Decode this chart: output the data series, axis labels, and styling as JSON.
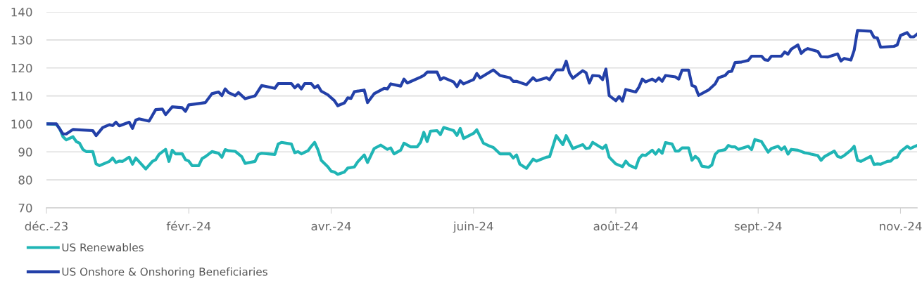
{
  "chart_data": {
    "type": "line",
    "ylim": [
      70,
      140
    ],
    "yticks": [
      70,
      80,
      90,
      100,
      110,
      120,
      130,
      140
    ],
    "categories": [
      "déc.-23",
      null,
      null,
      null,
      null,
      null,
      null,
      null,
      null,
      null,
      null,
      null,
      null,
      null,
      null,
      null,
      null,
      null,
      null,
      null,
      null,
      null,
      null,
      null,
      null,
      null,
      null,
      null,
      null,
      null,
      null,
      null,
      null,
      null,
      null,
      null,
      null,
      null,
      null,
      null,
      null,
      null,
      null,
      "févr.-24",
      null,
      null,
      null,
      null,
      null,
      null,
      null,
      null,
      null,
      null,
      null,
      null,
      null,
      null,
      null,
      null,
      null,
      null,
      null,
      null,
      null,
      null,
      null,
      null,
      null,
      null,
      null,
      null,
      null,
      null,
      null,
      null,
      null,
      null,
      null,
      null,
      null,
      null,
      null,
      null,
      null,
      null,
      "avr.-24",
      null,
      null,
      null,
      null,
      null,
      null,
      null,
      null,
      null,
      null,
      null,
      null,
      null,
      null,
      null,
      null,
      null,
      null,
      null,
      null,
      null,
      null,
      null,
      null,
      null,
      null,
      null,
      null,
      null,
      null,
      null,
      null,
      null,
      null,
      null,
      null,
      null,
      null,
      null,
      null,
      null,
      null,
      "juin-24",
      null,
      null,
      null,
      null,
      null,
      null,
      null,
      null,
      null,
      null,
      null,
      null,
      null,
      null,
      null,
      null,
      null,
      null,
      null,
      null,
      null,
      null,
      null,
      null,
      null,
      null,
      null,
      null,
      null,
      null,
      null,
      null,
      null,
      null,
      null,
      null,
      null,
      null,
      null,
      null,
      null,
      null,
      "août-24",
      null,
      null,
      null,
      null,
      null,
      null,
      null,
      null,
      null,
      null,
      null,
      null,
      null,
      null,
      null,
      null,
      null,
      null,
      null,
      null,
      null,
      null,
      null,
      null,
      null,
      null,
      null,
      null,
      null,
      null,
      null,
      null,
      null,
      null,
      null,
      null,
      null,
      null,
      null,
      null,
      null,
      null,
      "sept.-24",
      null,
      null,
      null,
      null,
      null,
      null,
      null,
      null,
      null,
      null,
      null,
      null,
      null,
      null,
      null,
      null,
      null,
      null,
      null,
      null,
      null,
      null,
      null,
      null,
      null,
      null,
      null,
      null,
      null,
      null,
      null,
      null,
      null,
      null,
      null,
      null,
      null,
      null,
      null,
      null,
      null,
      null,
      "nov.-24",
      null,
      null,
      null,
      null,
      null
    ],
    "grid": "y",
    "legend": "bottom",
    "marker": "none",
    "line_style": "solid",
    "series": [
      {
        "name": "US Renewables",
        "color": "#20b5b5",
        "values": [
          100.0,
          null,
          null,
          99.8,
          98.3,
          95.4,
          94.3,
          null,
          95.4,
          93.7,
          93.1,
          90.9,
          90.1,
          null,
          90.1,
          85.7,
          85.1,
          null,
          null,
          86.6,
          87.8,
          86.2,
          86.7,
          86.6,
          null,
          88.1,
          85.6,
          87.8,
          null,
          null,
          83.9,
          null,
          86.6,
          87.2,
          89.1,
          null,
          90.9,
          86.6,
          90.6,
          89.3,
          null,
          89.3,
          87.2,
          86.7,
          85.1,
          null,
          85.1,
          87.6,
          88.3,
          null,
          90.1,
          null,
          89.5,
          88.1,
          90.8,
          90.4,
          null,
          90.2,
          null,
          88.3,
          85.9,
          null,
          null,
          86.6,
          89.1,
          89.5,
          null,
          89.3,
          null,
          89.1,
          92.8,
          93.4,
          null,
          null,
          92.8,
          89.7,
          90.1,
          89.3,
          null,
          90.4,
          92.0,
          93.4,
          90.8,
          87.0,
          null,
          84.7,
          83.1,
          82.8,
          82.0,
          null,
          82.8,
          84.2,
          null,
          84.6,
          86.4,
          null,
          88.9,
          86.2,
          null,
          91.2,
          null,
          92.4,
          null,
          90.9,
          91.4,
          89.3,
          null,
          90.6,
          93.1,
          null,
          91.8,
          null,
          91.8,
          93.4,
          97.0,
          93.7,
          97.4,
          null,
          97.6,
          96.2,
          98.7,
          null,
          null,
          97.6,
          95.9,
          98.4,
          94.8,
          null,
          null,
          96.6,
          97.9,
          null,
          93.1,
          null,
          92.0,
          91.6,
          null,
          89.3,
          null,
          null,
          89.3,
          87.8,
          88.9,
          85.6,
          null,
          84.1,
          null,
          87.4,
          86.7,
          null,
          null,
          88.1,
          88.3,
          null,
          95.8,
          null,
          92.6,
          95.8,
          null,
          91.2,
          null,
          null,
          92.6,
          91.2,
          91.4,
          93.4,
          null,
          null,
          91.2,
          92.4,
          88.1,
          null,
          85.7,
          null,
          84.7,
          86.7,
          85.3,
          null,
          84.2,
          87.6,
          88.9,
          88.7,
          null,
          90.6,
          89.2,
          90.8,
          89.5,
          93.3,
          null,
          92.8,
          90.3,
          90.3,
          91.4,
          null,
          91.4,
          87.0,
          88.4,
          87.4,
          84.9,
          null,
          84.5,
          85.3,
          89.1,
          90.3,
          null,
          90.8,
          92.3,
          91.8,
          91.8,
          90.9,
          null,
          null,
          92.0,
          90.8,
          94.4,
          null,
          93.7,
          91.8,
          89.9,
          91.2,
          null,
          92.0,
          90.8,
          91.8,
          89.2,
          90.9,
          null,
          90.6,
          null,
          89.7,
          89.5,
          89.2,
          null,
          88.7,
          87.0,
          88.3,
          null,
          null,
          90.3,
          88.4,
          88.0,
          88.7,
          null,
          90.6,
          92.0,
          87.0,
          86.6,
          null,
          null,
          88.4,
          85.5,
          85.7,
          85.6,
          null,
          86.6,
          86.7,
          87.8,
          88.1,
          90.1,
          null,
          92.0,
          91.2,
          91.8,
          92.3
        ]
      },
      {
        "name": "US Onshore & Onshoring Beneficiaries",
        "color": "#2340a8",
        "values": [
          100.0,
          null,
          null,
          100.0,
          null,
          96.4,
          96.4,
          null,
          98.0,
          null,
          null,
          null,
          null,
          null,
          97.6,
          95.8,
          null,
          98.7,
          null,
          99.7,
          99.4,
          100.6,
          99.3,
          null,
          null,
          100.6,
          98.4,
          101.4,
          101.8,
          null,
          null,
          101.0,
          null,
          105.1,
          null,
          105.3,
          103.3,
          null,
          106.1,
          null,
          null,
          105.8,
          104.5,
          106.8,
          null,
          null,
          null,
          null,
          107.6,
          null,
          110.8,
          null,
          111.4,
          110.1,
          112.5,
          111.2,
          null,
          110.1,
          111.2,
          null,
          109.0,
          null,
          null,
          110.0,
          null,
          113.7,
          null,
          null,
          null,
          112.7,
          114.4,
          null,
          null,
          null,
          114.4,
          112.9,
          114.0,
          112.5,
          114.4,
          null,
          114.4,
          112.9,
          113.7,
          111.7,
          null,
          110.4,
          null,
          108.3,
          106.5,
          null,
          107.5,
          109.3,
          109.1,
          111.5,
          null,
          null,
          112.1,
          107.6,
          null,
          110.8,
          null,
          null,
          112.7,
          112.5,
          114.3,
          null,
          null,
          113.5,
          116.0,
          114.6,
          null,
          null,
          null,
          116.7,
          117.3,
          118.5,
          null,
          null,
          118.5,
          115.8,
          116.5,
          null,
          null,
          115.0,
          113.3,
          115.4,
          114.3,
          null,
          null,
          115.8,
          118.0,
          116.4,
          null,
          null,
          null,
          119.3,
          null,
          117.3,
          null,
          null,
          116.5,
          115.2,
          115.2,
          null,
          null,
          114.0,
          null,
          116.5,
          115.4,
          null,
          null,
          116.5,
          115.8,
          117.7,
          119.3,
          null,
          119.3,
          122.4,
          118.2,
          116.3,
          null,
          null,
          119.0,
          118.3,
          114.6,
          117.3,
          null,
          117.1,
          115.8,
          119.6,
          110.1,
          null,
          108.3,
          109.8,
          108.1,
          112.3,
          null,
          null,
          111.4,
          113.2,
          116.0,
          115.0,
          null,
          116.0,
          115.2,
          116.4,
          115.2,
          117.3,
          null,
          null,
          116.8,
          116.0,
          119.2,
          null,
          119.2,
          113.7,
          113.3,
          110.2,
          null,
          null,
          112.1,
          null,
          114.3,
          116.5,
          null,
          117.3,
          118.6,
          118.8,
          121.9,
          null,
          122.1,
          null,
          122.7,
          124.2,
          null,
          null,
          124.2,
          122.9,
          122.7,
          124.2,
          null,
          null,
          124.2,
          125.7,
          124.9,
          126.7,
          null,
          128.2,
          125.2,
          126.3,
          126.9,
          null,
          null,
          125.9,
          124.0,
          null,
          123.9,
          null,
          null,
          125.0,
          122.5,
          123.4,
          null,
          122.8,
          126.3,
          133.4,
          null,
          null,
          null,
          133.1,
          130.9,
          130.7,
          127.4,
          null,
          null,
          null,
          127.7,
          128.2,
          131.6,
          null,
          132.6,
          131.1,
          131.1,
          132.1
        ]
      }
    ]
  }
}
